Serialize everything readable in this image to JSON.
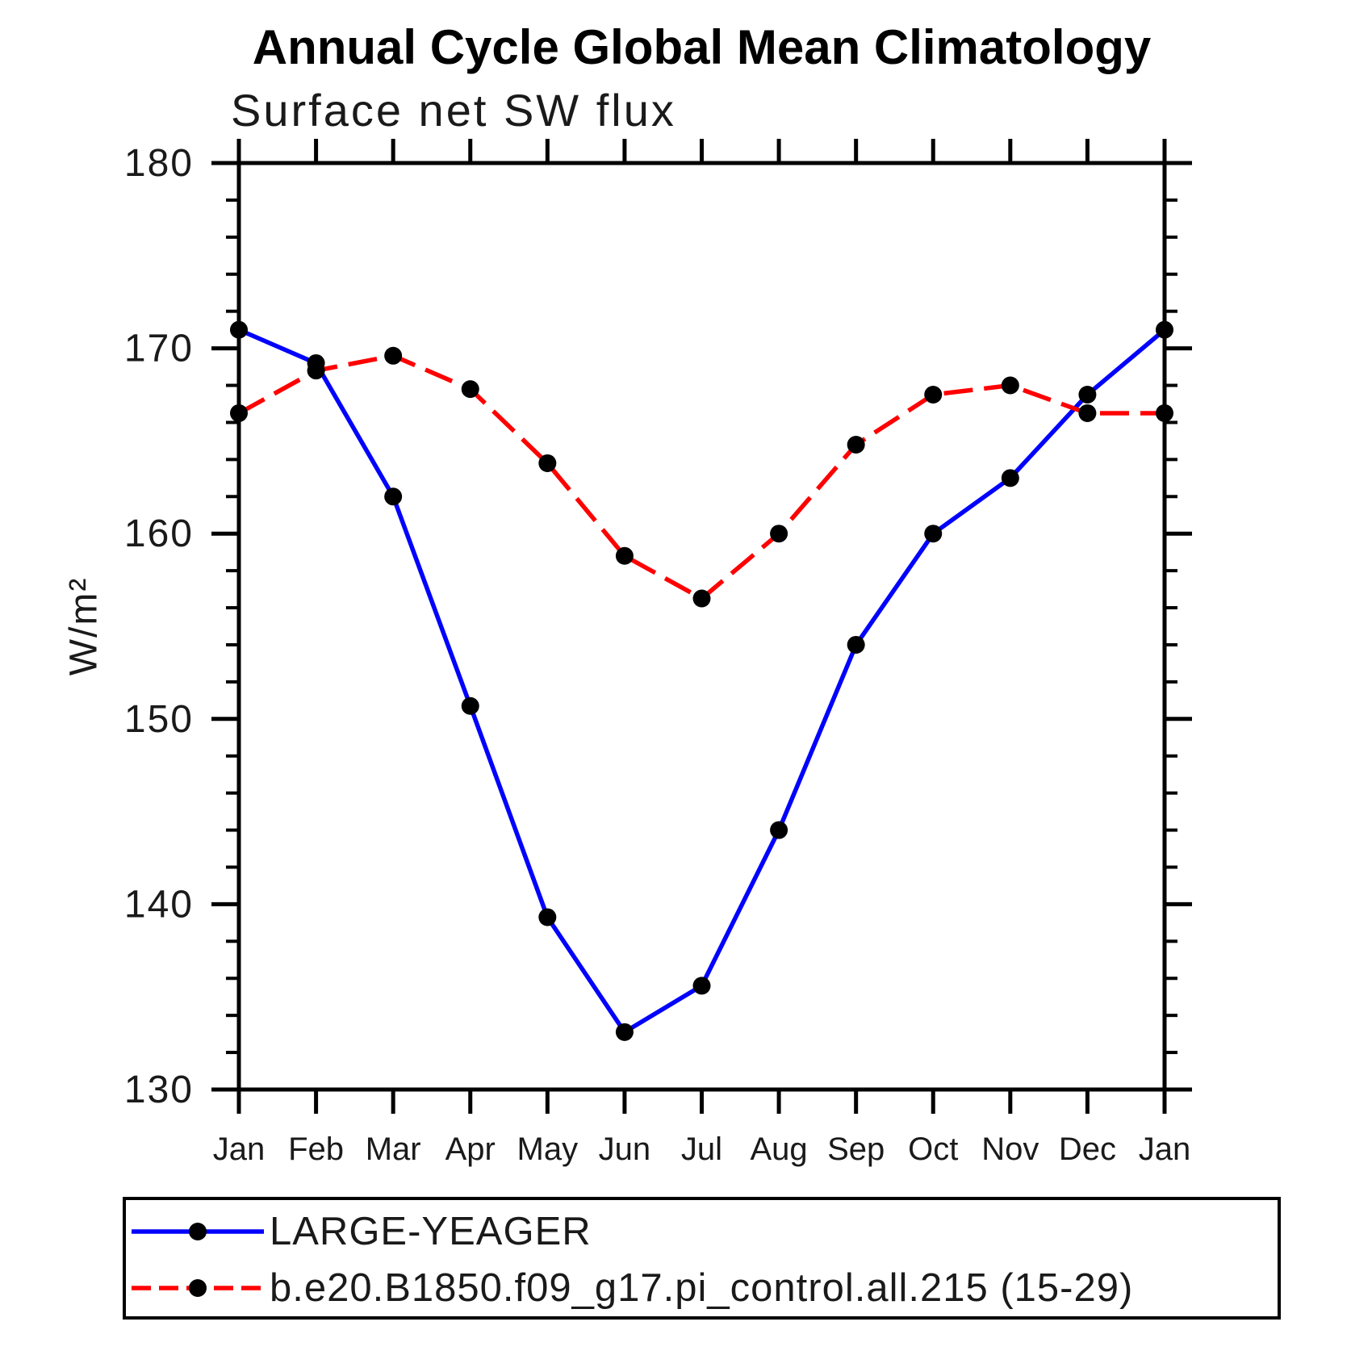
{
  "title": "Annual Cycle Global Mean Climatology",
  "subtitle": "Surface net SW flux",
  "y_axis": {
    "label": "W/m²",
    "tick_labels": [
      "130",
      "140",
      "150",
      "160",
      "170",
      "180"
    ]
  },
  "x_axis": {
    "tick_labels": [
      "Jan",
      "Feb",
      "Mar",
      "Apr",
      "May",
      "Jun",
      "Jul",
      "Aug",
      "Sep",
      "Oct",
      "Nov",
      "Dec",
      "Jan"
    ]
  },
  "chart_data": {
    "type": "line",
    "title": "Annual Cycle Global Mean Climatology",
    "subtitle": "Surface net SW flux",
    "xlabel": "",
    "ylabel": "W/m²",
    "categories": [
      "Jan",
      "Feb",
      "Mar",
      "Apr",
      "May",
      "Jun",
      "Jul",
      "Aug",
      "Sep",
      "Oct",
      "Nov",
      "Dec",
      "Jan"
    ],
    "ylim": [
      130,
      180
    ],
    "y_major_step": 10,
    "y_minor_step": 2,
    "y_major_tick_values": [
      130,
      140,
      150,
      160,
      170,
      180
    ],
    "y_major_tick_labels": [
      "130",
      "140",
      "150",
      "160",
      "170",
      "180"
    ],
    "grid": false,
    "legend_position": "bottom",
    "marker": "filled-circle",
    "marker_color": "#000000",
    "series": [
      {
        "name": "LARGE-YEAGER",
        "color": "#0000ff",
        "line_style": "solid",
        "values": [
          171.0,
          169.2,
          162.0,
          150.7,
          139.3,
          133.1,
          135.6,
          144.0,
          154.0,
          160.0,
          163.0,
          167.5,
          171.0
        ]
      },
      {
        "name": "b.e20.B1850.f09_g17.pi_control.all.215 (15-29)",
        "color": "#ff0000",
        "line_style": "dashed",
        "values": [
          166.5,
          168.8,
          169.6,
          167.8,
          163.8,
          158.8,
          156.5,
          160.0,
          164.8,
          167.5,
          168.0,
          166.5,
          166.5
        ]
      }
    ]
  }
}
